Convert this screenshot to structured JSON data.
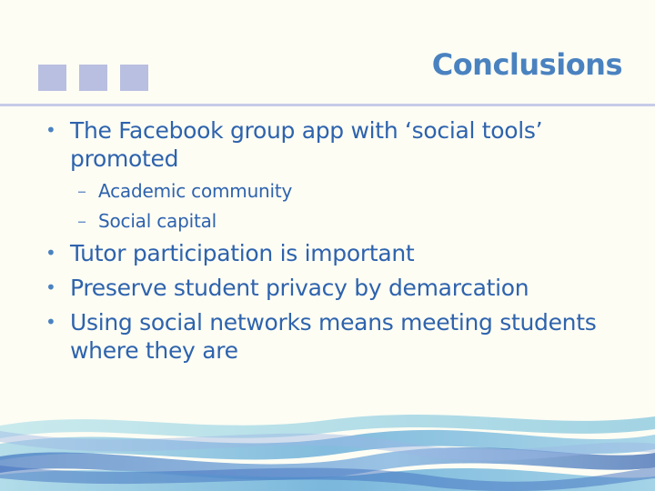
{
  "slide": {
    "title": "Conclusions",
    "bullets": [
      {
        "text": "The Facebook group app with ‘social tools’ promoted",
        "subitems": [
          "Academic community",
          "Social capital"
        ]
      },
      {
        "text": "Tutor participation is important"
      },
      {
        "text": "Preserve student privacy by demarcation"
      },
      {
        "text": "Using social networks means meeting students where they are"
      }
    ],
    "bullet_glyph": "•",
    "sub_glyph": "–"
  },
  "colors": {
    "background": "#fdfdf4",
    "title": "#4a82c0",
    "body_text": "#2e63ad",
    "decor_squares": "#b9bfe0",
    "divider": "#c7cbe8"
  }
}
